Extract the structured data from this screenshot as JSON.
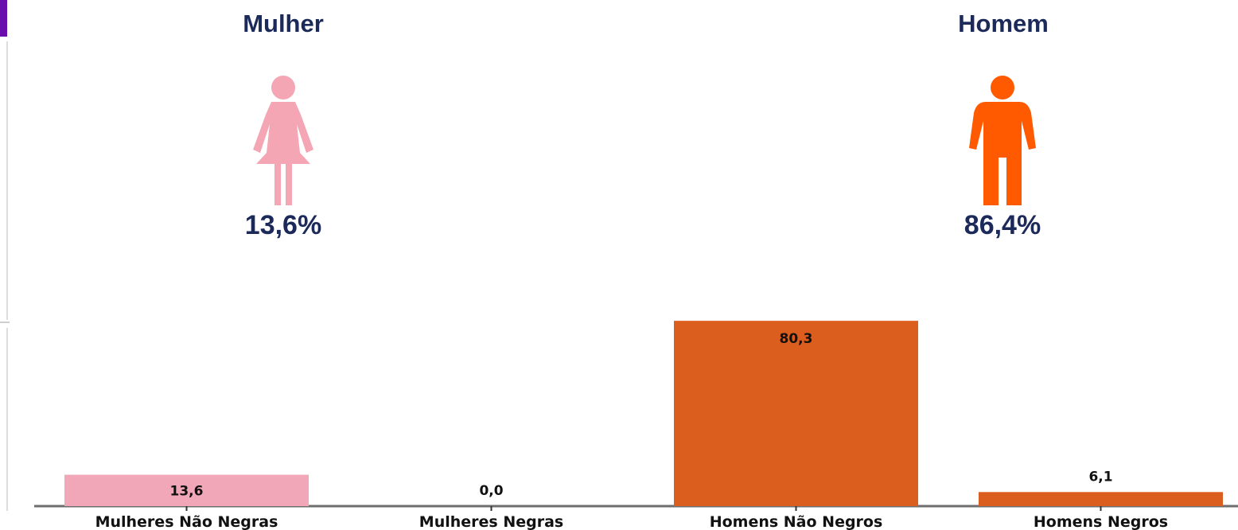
{
  "colors": {
    "woman": "#f4a6b4",
    "man": "#ff5a00",
    "bar_woman": "#f2a7b8",
    "bar_man": "#db5e1e",
    "title_text": "#1c2a5a",
    "accent_left": "#6a0dad"
  },
  "gender_panels": {
    "woman": {
      "title": "Mulher",
      "percent": "13,6%",
      "icon": "woman-icon"
    },
    "man": {
      "title": "Homem",
      "percent": "86,4%",
      "icon": "man-icon"
    }
  },
  "chart_data": {
    "type": "bar",
    "categories": [
      "Mulheres Não Negras",
      "Mulheres Negras",
      "Homens Não Negros",
      "Homens Negros"
    ],
    "values": [
      13.6,
      0.0,
      80.3,
      6.1
    ],
    "value_labels": [
      "13,6",
      "0,0",
      "80,3",
      "6,1"
    ],
    "bar_colors": [
      "#f2a7b8",
      "#f2a7b8",
      "#db5e1e",
      "#db5e1e"
    ],
    "ylim": [
      0,
      100
    ],
    "grid": false,
    "legend": "none"
  }
}
